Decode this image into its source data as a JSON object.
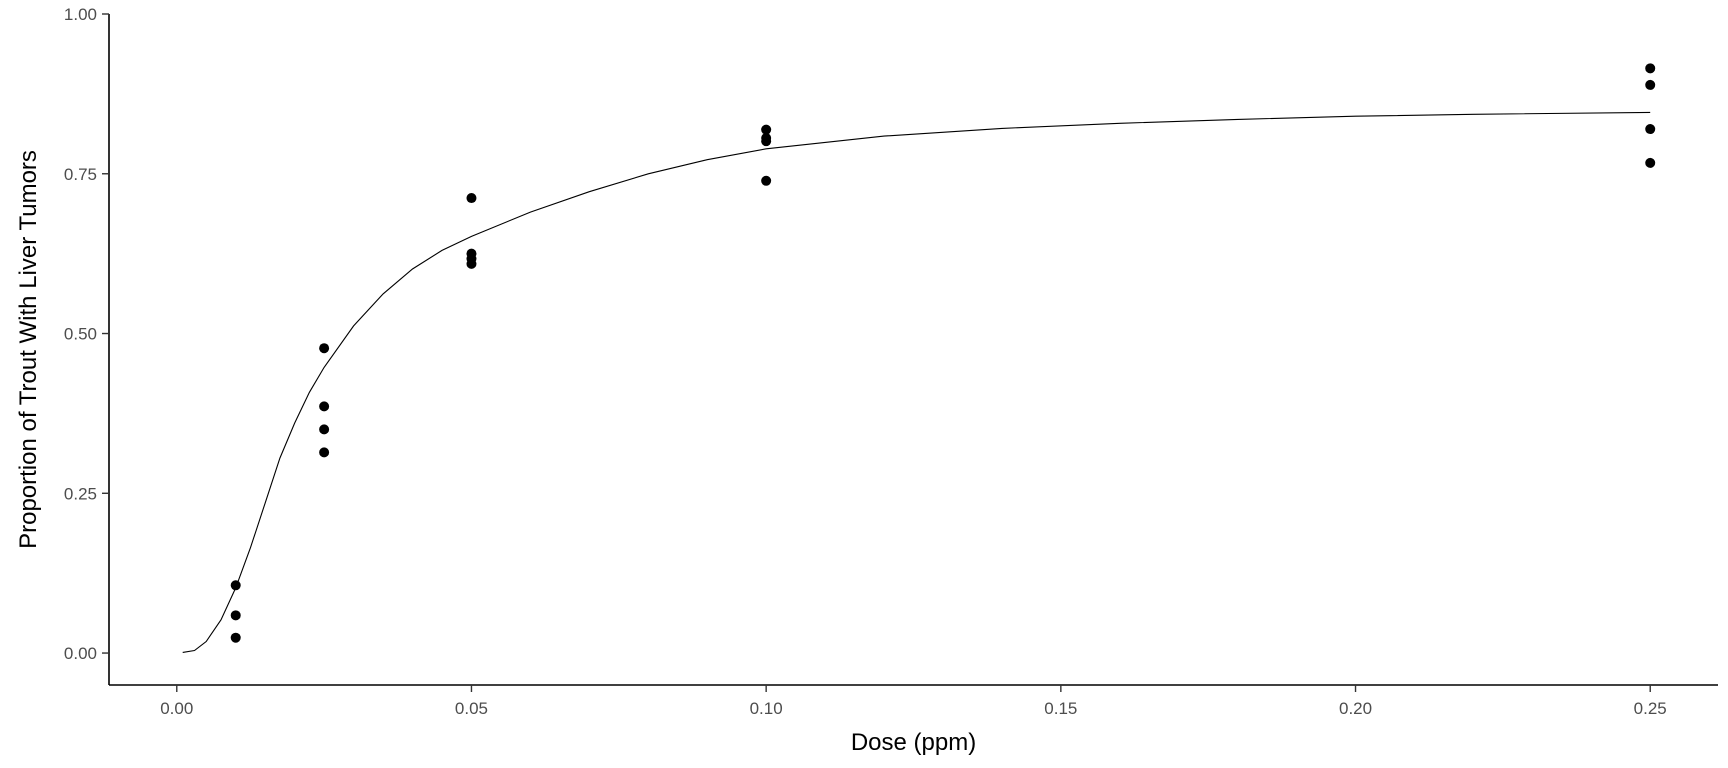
{
  "chart_data": {
    "type": "scatter",
    "xlabel": "Dose (ppm)",
    "ylabel": "Proportion of Trout With Liver Tumors",
    "xlim": [
      -0.0115,
      0.2615
    ],
    "ylim": [
      -0.05,
      1.0
    ],
    "x_ticks": [
      {
        "value": 0.0,
        "label": "0.00"
      },
      {
        "value": 0.05,
        "label": "0.05"
      },
      {
        "value": 0.1,
        "label": "0.10"
      },
      {
        "value": 0.15,
        "label": "0.15"
      },
      {
        "value": 0.2,
        "label": "0.20"
      },
      {
        "value": 0.25,
        "label": "0.25"
      }
    ],
    "y_ticks": [
      {
        "value": 0.0,
        "label": "0.00"
      },
      {
        "value": 0.25,
        "label": "0.25"
      },
      {
        "value": 0.5,
        "label": "0.50"
      },
      {
        "value": 0.75,
        "label": "0.75"
      },
      {
        "value": 1.0,
        "label": "1.00"
      }
    ],
    "grid": false,
    "legend": "none",
    "points": [
      {
        "x": 0.01,
        "y": 0.106
      },
      {
        "x": 0.01,
        "y": 0.059
      },
      {
        "x": 0.01,
        "y": 0.024
      },
      {
        "x": 0.025,
        "y": 0.477
      },
      {
        "x": 0.025,
        "y": 0.386
      },
      {
        "x": 0.025,
        "y": 0.35
      },
      {
        "x": 0.025,
        "y": 0.314
      },
      {
        "x": 0.05,
        "y": 0.712
      },
      {
        "x": 0.05,
        "y": 0.625
      },
      {
        "x": 0.05,
        "y": 0.617
      },
      {
        "x": 0.05,
        "y": 0.609
      },
      {
        "x": 0.1,
        "y": 0.819
      },
      {
        "x": 0.1,
        "y": 0.806
      },
      {
        "x": 0.1,
        "y": 0.801
      },
      {
        "x": 0.1,
        "y": 0.739
      },
      {
        "x": 0.25,
        "y": 0.915
      },
      {
        "x": 0.25,
        "y": 0.889
      },
      {
        "x": 0.25,
        "y": 0.82
      },
      {
        "x": 0.25,
        "y": 0.767
      }
    ],
    "fitted_curve": {
      "x": [
        0.001,
        0.003,
        0.005,
        0.0075,
        0.01,
        0.0125,
        0.015,
        0.0175,
        0.02,
        0.0225,
        0.025,
        0.03,
        0.035,
        0.04,
        0.045,
        0.05,
        0.06,
        0.07,
        0.08,
        0.09,
        0.1,
        0.12,
        0.14,
        0.16,
        0.18,
        0.2,
        0.22,
        0.25
      ],
      "y": [
        0.001,
        0.004,
        0.018,
        0.052,
        0.102,
        0.165,
        0.235,
        0.305,
        0.36,
        0.408,
        0.447,
        0.512,
        0.562,
        0.601,
        0.63,
        0.652,
        0.69,
        0.722,
        0.75,
        0.772,
        0.789,
        0.809,
        0.821,
        0.829,
        0.835,
        0.84,
        0.843,
        0.846
      ]
    },
    "colors": {
      "points": "#000000",
      "curve": "#000000",
      "axis": "#000000"
    }
  }
}
